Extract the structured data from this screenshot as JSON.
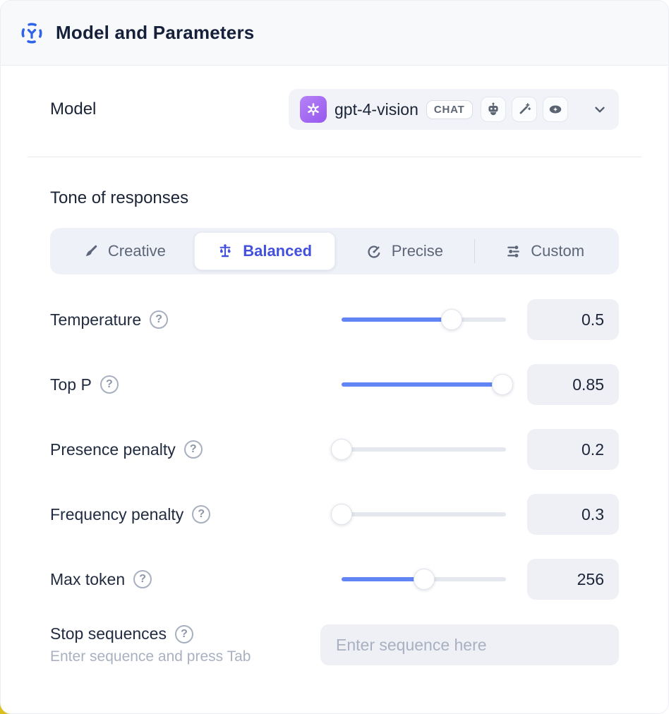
{
  "header": {
    "title": "Model and Parameters",
    "icon": "model-hub-icon"
  },
  "model_row": {
    "label": "Model",
    "selected_model": "gpt-4-vision",
    "type_badge": "CHAT",
    "provider_icon": "openai-logo",
    "capability_icons": [
      "robot-icon",
      "magic-wand-icon",
      "vision-eye-icon"
    ],
    "dropdown_icon": "chevron-down-icon"
  },
  "tone": {
    "title": "Tone of responses",
    "tabs": [
      {
        "label": "Creative",
        "icon": "paintbrush-icon",
        "selected": false
      },
      {
        "label": "Balanced",
        "icon": "balance-scale-icon",
        "selected": true
      },
      {
        "label": "Precise",
        "icon": "target-icon",
        "selected": false
      },
      {
        "label": "Custom",
        "icon": "sliders-icon",
        "selected": false
      }
    ]
  },
  "parameters": [
    {
      "label": "Temperature",
      "value": "0.5",
      "fill_percent": 67,
      "has_help": true
    },
    {
      "label": "Top P",
      "value": "0.85",
      "fill_percent": 98,
      "has_help": true
    },
    {
      "label": "Presence penalty",
      "value": "0.2",
      "fill_percent": 0,
      "has_help": true
    },
    {
      "label": "Frequency penalty",
      "value": "0.3",
      "fill_percent": 0,
      "has_help": true
    },
    {
      "label": "Max token",
      "value": "256",
      "fill_percent": 50,
      "has_help": true
    }
  ],
  "stop_sequences": {
    "label": "Stop sequences",
    "hint": "Enter sequence and press Tab",
    "placeholder": "Enter sequence here",
    "value": "",
    "has_help": true
  },
  "icons": {
    "help_glyph": "?"
  },
  "colors": {
    "slider_accent": "#6285f6",
    "active_tab_text": "#4350dd",
    "header_icon_blue": "#2f63e8",
    "provider_purple": "#9757ef",
    "panel_header_bg": "#f8f9fb",
    "control_bg": "#eef0f6",
    "background_corner_yellow": "#dcbf1e"
  }
}
